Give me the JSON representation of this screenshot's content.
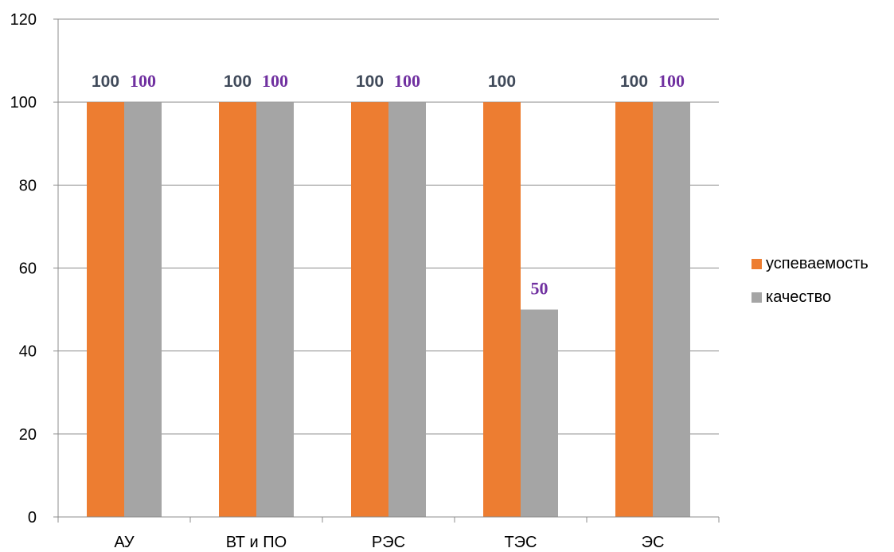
{
  "chart_data": {
    "type": "bar",
    "categories": [
      "АУ",
      "ВТ и ПО",
      "РЭС",
      "ТЭС",
      "ЭС"
    ],
    "series": [
      {
        "name": "успеваемость",
        "values": [
          100,
          100,
          100,
          100,
          100
        ],
        "color": "#ed7d31",
        "labels": [
          "100",
          "100",
          "100",
          "100",
          "100"
        ]
      },
      {
        "name": "качество",
        "values": [
          100,
          100,
          100,
          50,
          100
        ],
        "color": "#a5a5a5",
        "labels": [
          "100",
          "100",
          "100",
          "50",
          "100"
        ]
      }
    ],
    "title": "",
    "xlabel": "",
    "ylabel": "",
    "ylim": [
      0,
      120
    ],
    "yticks": [
      "0",
      "20",
      "40",
      "60",
      "80",
      "100",
      "120"
    ],
    "grid": true,
    "legend_position": "right",
    "data_label_colors": {
      "успеваемость": "#404a5a",
      "качество": "#7030a0"
    }
  }
}
